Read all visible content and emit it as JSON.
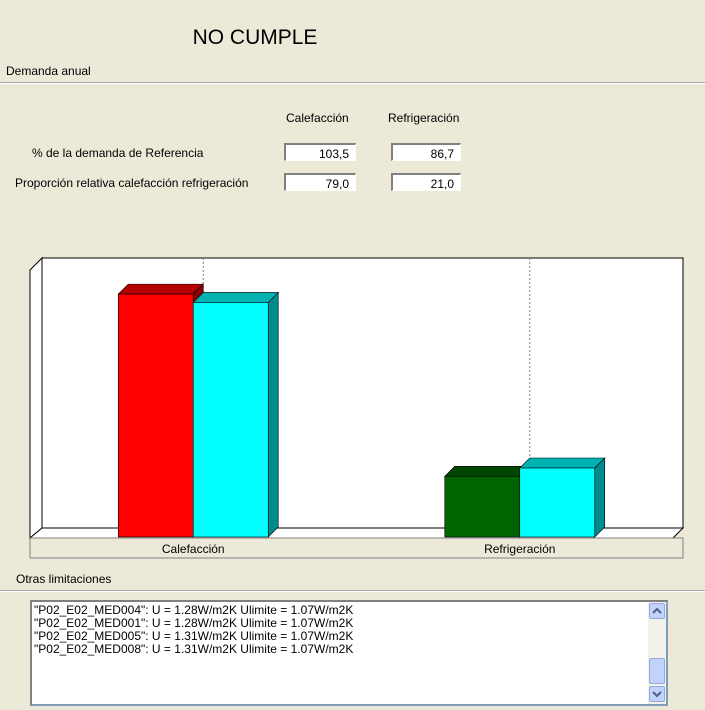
{
  "header": {
    "title": "NO CUMPLE",
    "section": "Demanda anual"
  },
  "form": {
    "columns": [
      "Calefacción",
      "Refrigeración"
    ],
    "rows": [
      {
        "label": "% de la demanda de Referencia",
        "values": [
          "103,5",
          "86,7"
        ]
      },
      {
        "label": "Proporción relativa calefacción refrigeración",
        "values": [
          "79,0",
          "21,0"
        ]
      }
    ]
  },
  "chart_data": {
    "type": "bar3d",
    "categories": [
      "Calefacción",
      "Refrigeración"
    ],
    "series": [
      {
        "values": [
          88,
          22
        ],
        "colors": [
          "#ff0000",
          "#006400"
        ]
      },
      {
        "values": [
          85,
          25
        ],
        "colors": [
          "#00ffff",
          "#00ffff"
        ]
      }
    ],
    "ylim": [
      0,
      100
    ],
    "grid": true
  },
  "limits": {
    "title": "Otras limitaciones",
    "items": [
      "\"P02_E02_MED004\": U = 1.28W/m2K Ulimite = 1.07W/m2K",
      "\"P02_E02_MED001\": U = 1.28W/m2K Ulimite = 1.07W/m2K",
      "\"P02_E02_MED005\": U = 1.31W/m2K Ulimite = 1.07W/m2K",
      "\"P02_E02_MED008\": U = 1.31W/m2K Ulimite = 1.07W/m2K"
    ]
  }
}
